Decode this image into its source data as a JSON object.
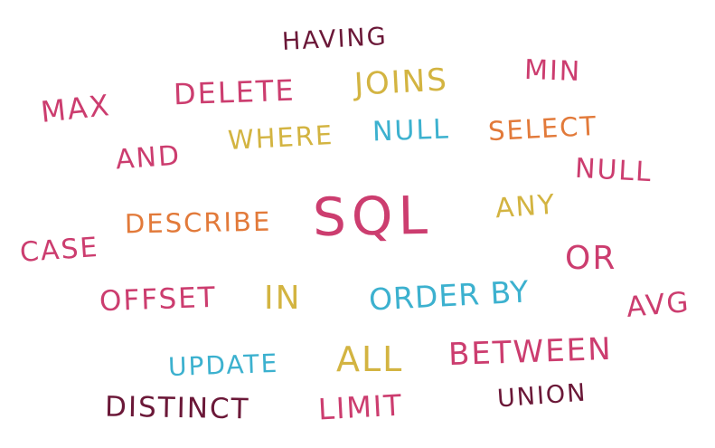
{
  "words": {
    "having": "HAVING",
    "max": "MAX",
    "delete": "DELETE",
    "joins": "JOINS",
    "min": "MIN",
    "and": "AND",
    "where": "WHERE",
    "null_top": "NULL",
    "select": "SELECT",
    "null_right": "NULL",
    "describe": "DESCRIBE",
    "sql": "SQL",
    "any": "ANY",
    "case": "CASE",
    "or": "OR",
    "offset": "OFFSET",
    "in": "IN",
    "order_by": "ORDER BY",
    "avg": "AVG",
    "update": "UPDATE",
    "all": "ALL",
    "between": "BETWEEN",
    "distinct": "DISTINCT",
    "limit": "LIMIT",
    "union": "UNION"
  },
  "colors": {
    "pink": "#cc3d6f",
    "plum": "#6b1838",
    "mustard": "#d3b441",
    "cyan": "#3cb1cf",
    "orange": "#e27a3a"
  }
}
